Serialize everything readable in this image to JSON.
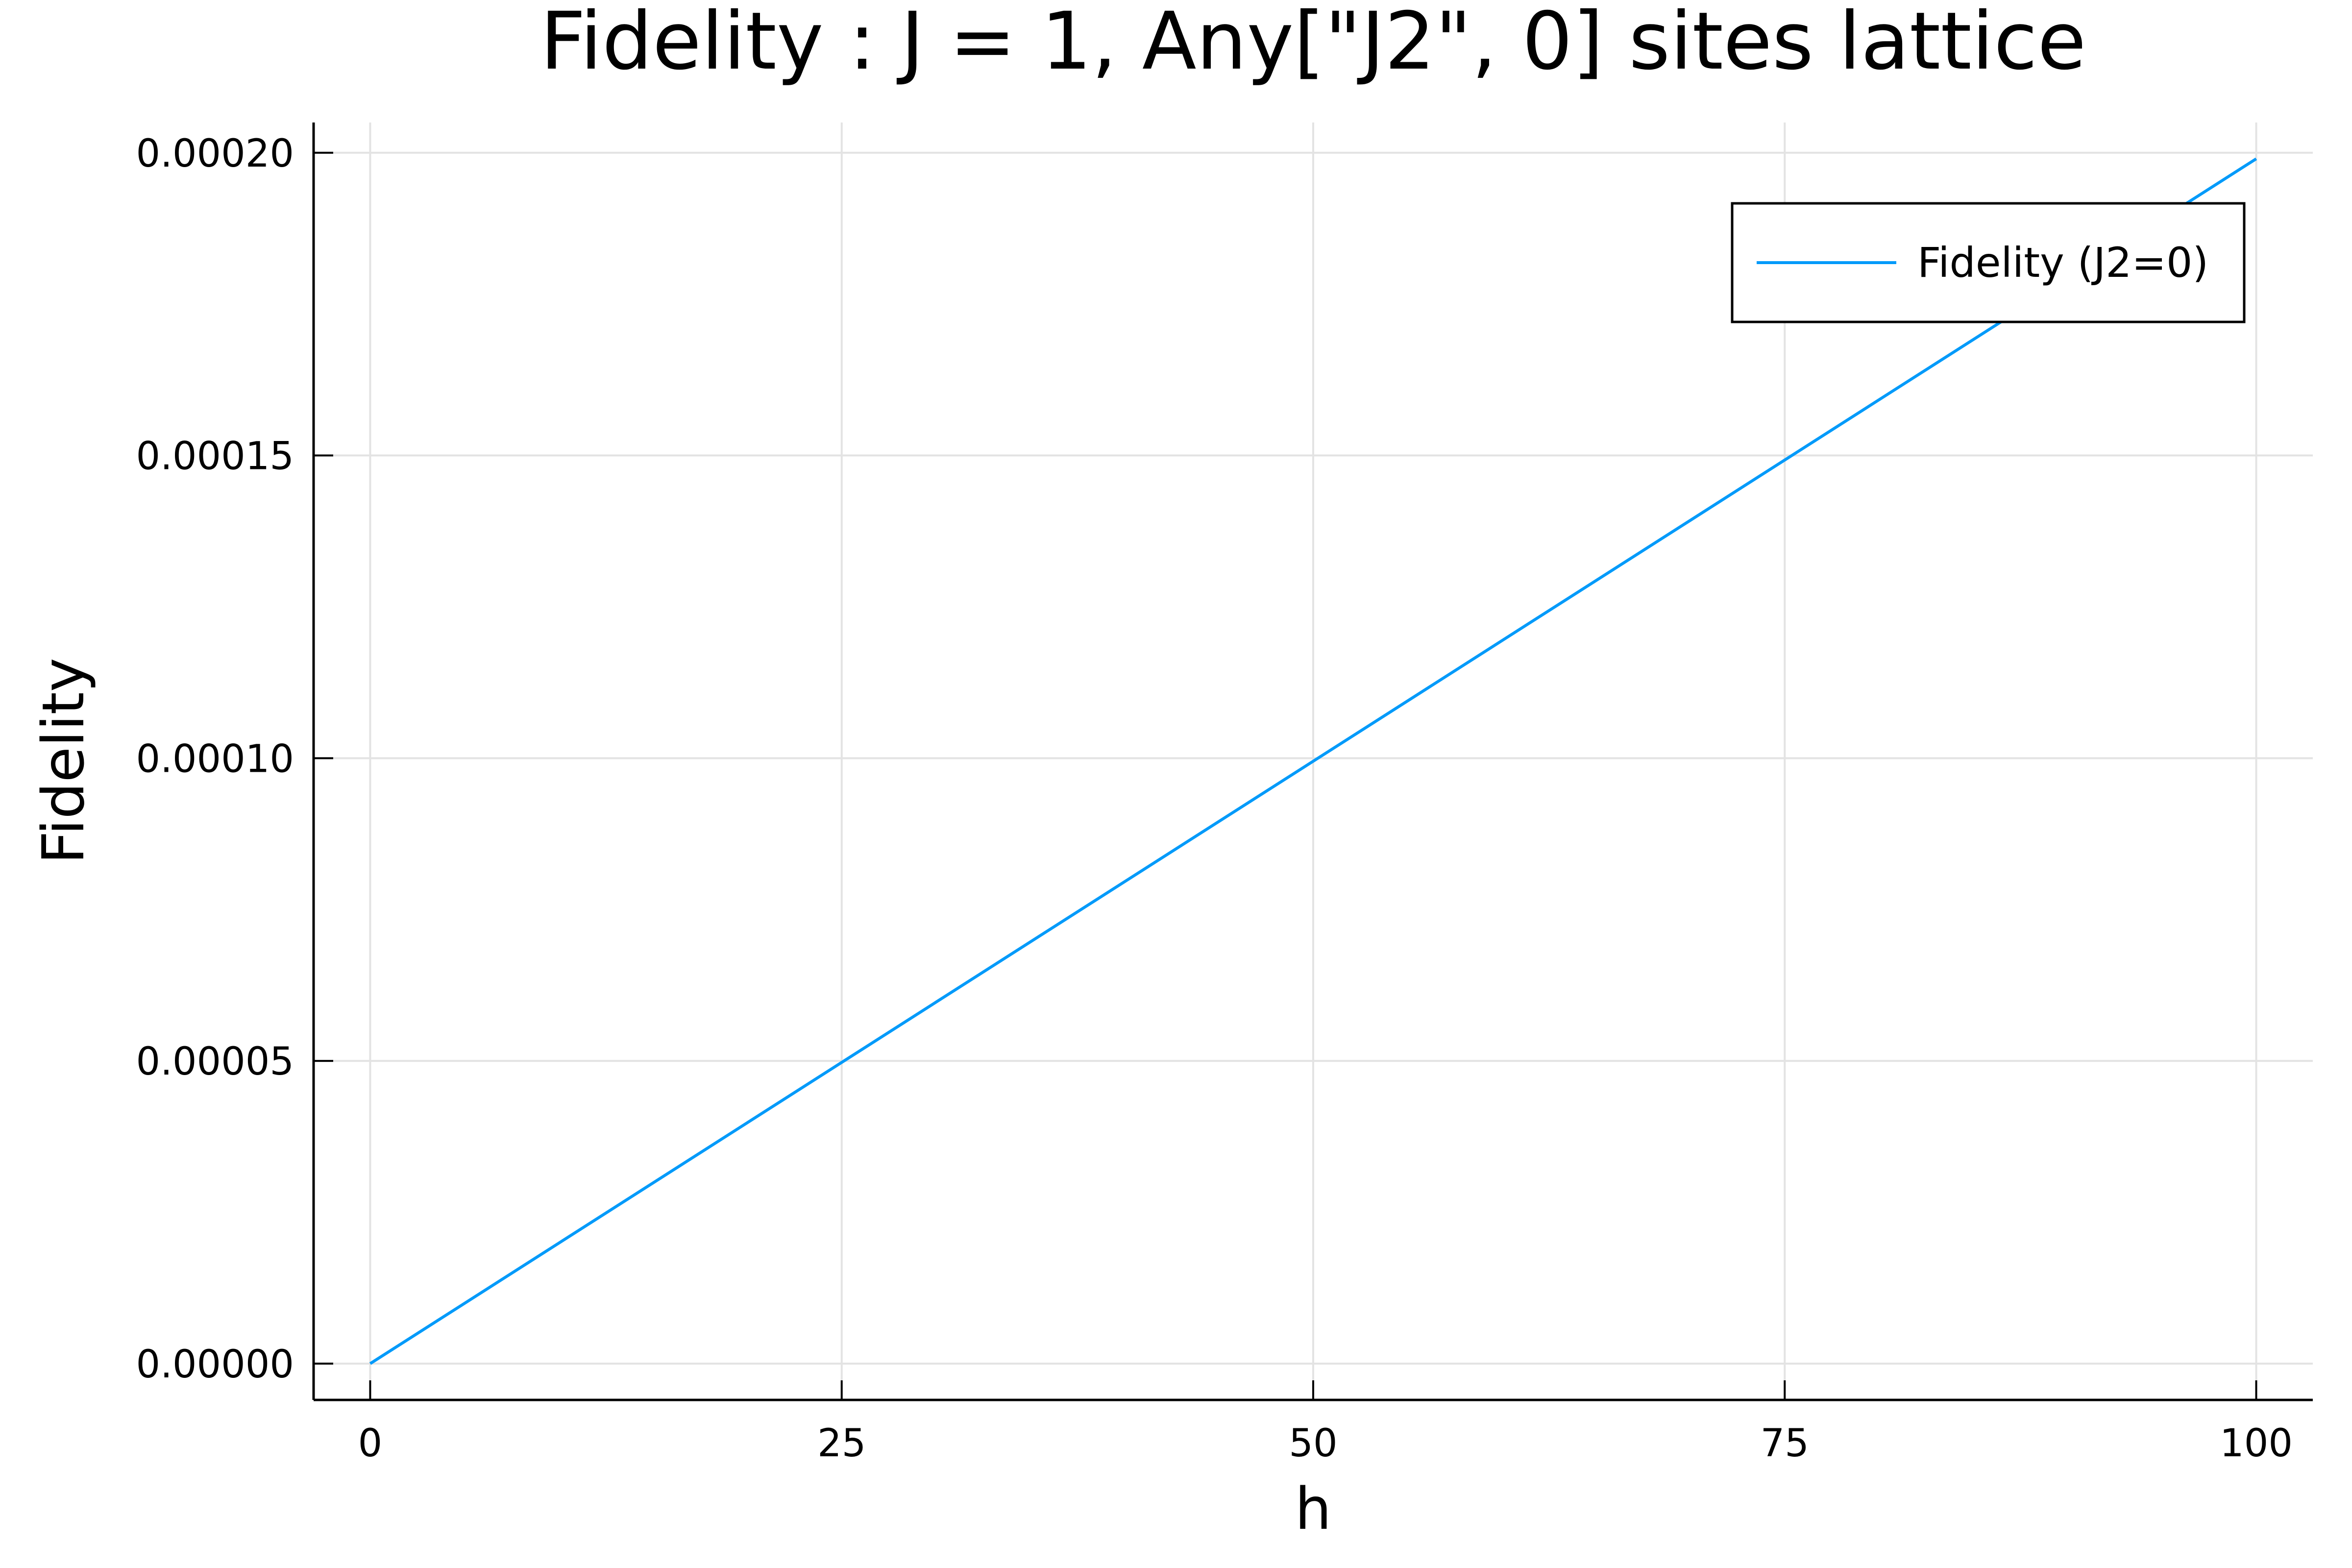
{
  "chart_data": {
    "type": "line",
    "title": "Fidelity : J = 1, Any[\"J2\", 0] sites lattice",
    "xlabel": "h",
    "ylabel": "Fidelity",
    "xlim": [
      -3,
      103
    ],
    "ylim": [
      -6e-06,
      0.000205
    ],
    "xticks": [
      0,
      25,
      50,
      75,
      100
    ],
    "xtick_labels": [
      "0",
      "25",
      "50",
      "75",
      "100"
    ],
    "yticks": [
      0,
      5e-05,
      0.0001,
      0.00015,
      0.0002
    ],
    "ytick_labels": [
      "0.00000",
      "0.00005",
      "0.00010",
      "0.00015",
      "0.00020"
    ],
    "grid": true,
    "legend_position": "top-right",
    "series": [
      {
        "name": "Fidelity (J2=0)",
        "color": "#009AFA",
        "x": [
          0,
          10,
          20,
          30,
          40,
          50,
          60,
          70,
          80,
          90,
          100
        ],
        "y": [
          0,
          1.99e-05,
          3.98e-05,
          5.97e-05,
          7.96e-05,
          9.95e-05,
          0.0001194,
          0.0001393,
          0.0001592,
          0.0001791,
          0.000199
        ]
      }
    ]
  }
}
